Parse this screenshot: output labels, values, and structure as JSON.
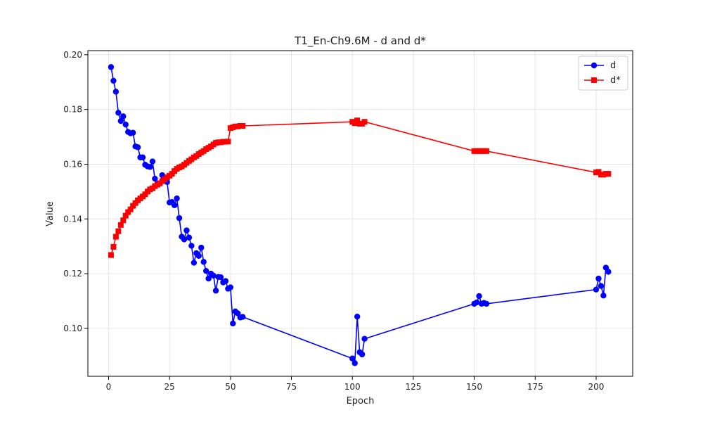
{
  "chart_data": {
    "type": "line",
    "title": "T1_En-Ch9.6M - d and d*",
    "xlabel": "Epoch",
    "ylabel": "Value",
    "xlim": [
      -8.5,
      215
    ],
    "ylim": [
      0.0825,
      0.2015
    ],
    "xticks": [
      0,
      25,
      50,
      75,
      100,
      125,
      150,
      175,
      200
    ],
    "yticks": [
      0.1,
      0.12,
      0.14,
      0.16,
      0.18,
      0.2
    ],
    "grid": true,
    "legend_position": "top-right",
    "series": [
      {
        "name": "d",
        "color": "#0000ff",
        "marker": "circle",
        "points": [
          [
            1,
            0.1955
          ],
          [
            2,
            0.1905
          ],
          [
            3,
            0.1865
          ],
          [
            4,
            0.1788
          ],
          [
            5,
            0.1758
          ],
          [
            6,
            0.1775
          ],
          [
            7,
            0.1745
          ],
          [
            8,
            0.1718
          ],
          [
            9,
            0.1713
          ],
          [
            10,
            0.1715
          ],
          [
            11,
            0.1665
          ],
          [
            12,
            0.1662
          ],
          [
            13,
            0.1625
          ],
          [
            14,
            0.1625
          ],
          [
            15,
            0.1598
          ],
          [
            16,
            0.1592
          ],
          [
            17,
            0.159
          ],
          [
            18,
            0.161
          ],
          [
            19,
            0.1547
          ],
          [
            20,
            0.153
          ],
          [
            21,
            0.153
          ],
          [
            22,
            0.156
          ],
          [
            23,
            0.1545
          ],
          [
            24,
            0.1535
          ],
          [
            25,
            0.146
          ],
          [
            26,
            0.1462
          ],
          [
            27,
            0.145
          ],
          [
            28,
            0.1475
          ],
          [
            29,
            0.1403
          ],
          [
            30,
            0.1335
          ],
          [
            31,
            0.1325
          ],
          [
            32,
            0.1358
          ],
          [
            33,
            0.1332
          ],
          [
            34,
            0.1302
          ],
          [
            35,
            0.124
          ],
          [
            36,
            0.1275
          ],
          [
            37,
            0.1265
          ],
          [
            38,
            0.1295
          ],
          [
            39,
            0.1243
          ],
          [
            40,
            0.121
          ],
          [
            41,
            0.1182
          ],
          [
            42,
            0.12
          ],
          [
            43,
            0.1193
          ],
          [
            44,
            0.1138
          ],
          [
            45,
            0.1188
          ],
          [
            46,
            0.1187
          ],
          [
            47,
            0.1168
          ],
          [
            48,
            0.1173
          ],
          [
            49,
            0.1145
          ],
          [
            50,
            0.115
          ],
          [
            51,
            0.1018
          ],
          [
            52,
            0.1062
          ],
          [
            53,
            0.1055
          ],
          [
            54,
            0.104
          ],
          [
            55,
            0.1042
          ],
          [
            100,
            0.089
          ],
          [
            101,
            0.0873
          ],
          [
            102,
            0.1043
          ],
          [
            103,
            0.0913
          ],
          [
            104,
            0.0905
          ],
          [
            105,
            0.0962
          ],
          [
            150,
            0.109
          ],
          [
            151,
            0.1095
          ],
          [
            152,
            0.1118
          ],
          [
            153,
            0.109
          ],
          [
            154,
            0.1093
          ],
          [
            155,
            0.109
          ],
          [
            200,
            0.1142
          ],
          [
            201,
            0.1182
          ],
          [
            202,
            0.1155
          ],
          [
            203,
            0.112
          ],
          [
            204,
            0.1222
          ],
          [
            205,
            0.1207
          ]
        ]
      },
      {
        "name": "d*",
        "color": "#ff0000",
        "marker": "square",
        "points": [
          [
            1,
            0.1268
          ],
          [
            2,
            0.1298
          ],
          [
            3,
            0.1335
          ],
          [
            4,
            0.1355
          ],
          [
            5,
            0.1378
          ],
          [
            6,
            0.1395
          ],
          [
            7,
            0.1412
          ],
          [
            8,
            0.1425
          ],
          [
            9,
            0.1435
          ],
          [
            10,
            0.1448
          ],
          [
            11,
            0.1458
          ],
          [
            12,
            0.1468
          ],
          [
            13,
            0.1475
          ],
          [
            14,
            0.1482
          ],
          [
            15,
            0.149
          ],
          [
            16,
            0.15
          ],
          [
            17,
            0.1508
          ],
          [
            18,
            0.1512
          ],
          [
            19,
            0.152
          ],
          [
            20,
            0.1525
          ],
          [
            21,
            0.153
          ],
          [
            22,
            0.1538
          ],
          [
            23,
            0.1545
          ],
          [
            24,
            0.1552
          ],
          [
            25,
            0.1558
          ],
          [
            26,
            0.1565
          ],
          [
            27,
            0.1575
          ],
          [
            28,
            0.1583
          ],
          [
            29,
            0.1588
          ],
          [
            30,
            0.1592
          ],
          [
            31,
            0.1598
          ],
          [
            32,
            0.1605
          ],
          [
            33,
            0.1612
          ],
          [
            34,
            0.1618
          ],
          [
            35,
            0.1625
          ],
          [
            36,
            0.163
          ],
          [
            37,
            0.1637
          ],
          [
            38,
            0.1643
          ],
          [
            39,
            0.1648
          ],
          [
            40,
            0.1655
          ],
          [
            41,
            0.166
          ],
          [
            42,
            0.1665
          ],
          [
            43,
            0.1672
          ],
          [
            44,
            0.1678
          ],
          [
            45,
            0.168
          ],
          [
            46,
            0.168
          ],
          [
            47,
            0.1682
          ],
          [
            48,
            0.1682
          ],
          [
            49,
            0.1683
          ],
          [
            50,
            0.1732
          ],
          [
            51,
            0.1735
          ],
          [
            52,
            0.1738
          ],
          [
            53,
            0.1738
          ],
          [
            54,
            0.174
          ],
          [
            55,
            0.174
          ],
          [
            100,
            0.1755
          ],
          [
            101,
            0.175
          ],
          [
            102,
            0.176
          ],
          [
            103,
            0.1748
          ],
          [
            104,
            0.1748
          ],
          [
            105,
            0.1755
          ],
          [
            150,
            0.1648
          ],
          [
            151,
            0.1648
          ],
          [
            152,
            0.1648
          ],
          [
            153,
            0.1648
          ],
          [
            154,
            0.1648
          ],
          [
            155,
            0.1648
          ],
          [
            200,
            0.157
          ],
          [
            201,
            0.1572
          ],
          [
            202,
            0.1562
          ],
          [
            203,
            0.1562
          ],
          [
            204,
            0.1565
          ],
          [
            205,
            0.1565
          ]
        ]
      }
    ]
  }
}
